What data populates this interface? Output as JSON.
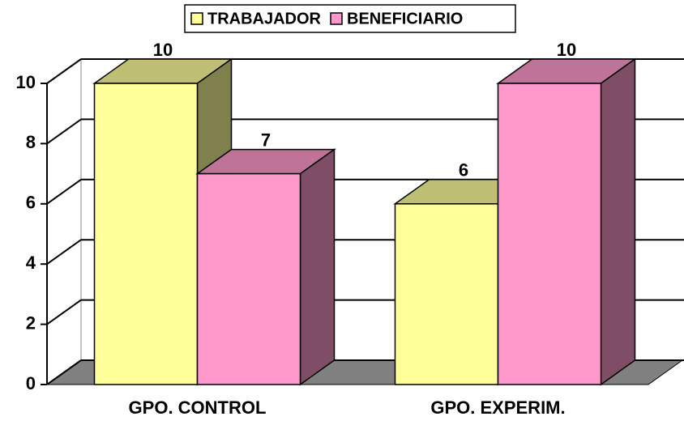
{
  "chart_data": {
    "type": "bar3d",
    "categories": [
      "GPO. CONTROL",
      "GPO. EXPERIM."
    ],
    "series": [
      {
        "name": "TRABAJADOR",
        "color": "#ffff99",
        "values": [
          10,
          6
        ]
      },
      {
        "name": "BENEFICIARIO",
        "color": "#ff99cc",
        "values": [
          7,
          10
        ]
      }
    ],
    "ylim": [
      0,
      10
    ],
    "yticks": [
      0,
      2,
      4,
      6,
      8,
      10
    ],
    "grid": true,
    "legend": "top"
  }
}
